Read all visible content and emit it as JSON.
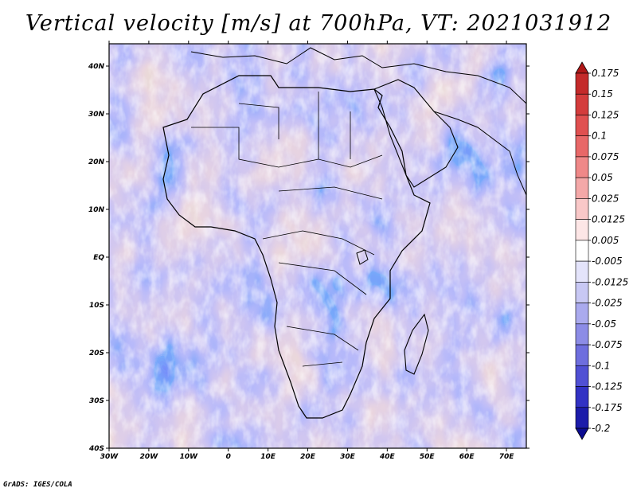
{
  "title": "Vertical velocity [m/s] at 700hPa, VT: 2021031912",
  "footer": "GrADS: IGES/COLA",
  "map": {
    "lon_labels": [
      "30W",
      "20W",
      "10W",
      "0",
      "10E",
      "20E",
      "30E",
      "40E",
      "50E",
      "60E",
      "70E"
    ],
    "lat_labels": [
      "40N",
      "30N",
      "20N",
      "10N",
      "EQ",
      "10S",
      "20S",
      "30S",
      "40S"
    ]
  },
  "colorbar": {
    "labels": [
      "0.175",
      "0.15",
      "0.125",
      "0.1",
      "0.075",
      "0.05",
      "0.025",
      "0.0125",
      "0.005",
      "-0.005",
      "-0.0125",
      "-0.025",
      "-0.05",
      "-0.075",
      "-0.1",
      "-0.125",
      "-0.175",
      "-0.2"
    ],
    "colors": [
      "#b01818",
      "#c42a2a",
      "#d43c3c",
      "#e05050",
      "#e86868",
      "#ef8888",
      "#f4a8a8",
      "#f9c8c8",
      "#fde6e6",
      "#ffffff",
      "#e4e4fb",
      "#c8c8f4",
      "#aaaaee",
      "#8c8ce6",
      "#6e6ede",
      "#5050d4",
      "#3232c4",
      "#1c1caa",
      "#0c0c90"
    ]
  }
}
